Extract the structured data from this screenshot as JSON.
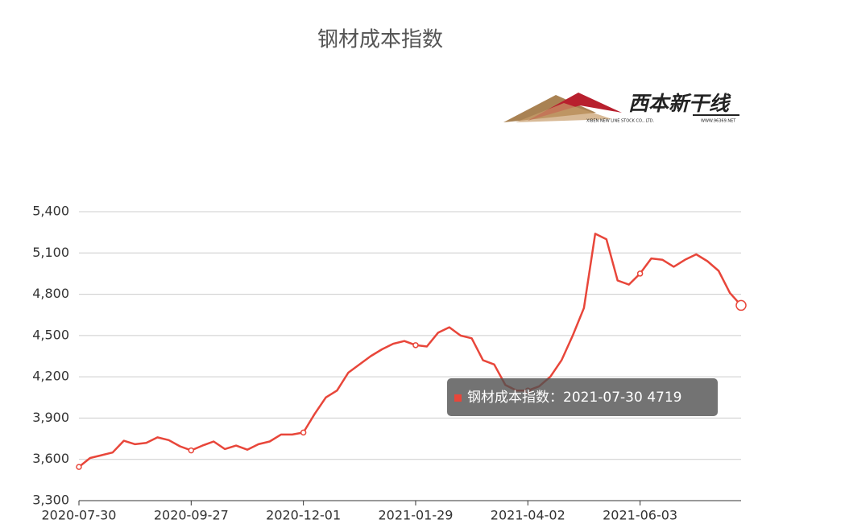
{
  "chart_data": {
    "type": "line",
    "title": "钢材成本指数",
    "categories": [
      "2020-07-30",
      null,
      null,
      null,
      null,
      null,
      null,
      null,
      null,
      null,
      "2020-09-27",
      null,
      null,
      null,
      null,
      null,
      null,
      null,
      null,
      null,
      "2020-12-01",
      null,
      null,
      null,
      null,
      null,
      null,
      null,
      null,
      null,
      "2021-01-29",
      null,
      null,
      null,
      null,
      null,
      null,
      null,
      null,
      null,
      "2021-04-02",
      null,
      null,
      null,
      null,
      null,
      null,
      null,
      null,
      null,
      "2021-06-03",
      null,
      null,
      null,
      null,
      null,
      null,
      null,
      null,
      null
    ],
    "series": [
      {
        "name": "钢材成本指数",
        "color": "#e8463a",
        "values": [
          3545,
          3610,
          3630,
          3650,
          3735,
          3710,
          3720,
          3760,
          3740,
          3695,
          3665,
          3700,
          3730,
          3675,
          3700,
          3670,
          3710,
          3730,
          3780,
          3780,
          3795,
          3930,
          4050,
          4100,
          4230,
          4290,
          4350,
          4400,
          4440,
          4460,
          4430,
          4420,
          4520,
          4560,
          4500,
          4480,
          4320,
          4290,
          4140,
          4100,
          4100,
          4130,
          4200,
          4320,
          4500,
          4700,
          5240,
          5200,
          4900,
          4870,
          4950,
          5060,
          5050,
          5000,
          5050,
          5090,
          5040,
          4970,
          4810,
          4719
        ]
      }
    ],
    "ylim": [
      3300,
      5400
    ],
    "yticks": [
      {
        "value": 3300,
        "label": "3,300"
      },
      {
        "value": 3600,
        "label": "3,600"
      },
      {
        "value": 3900,
        "label": "3,900"
      },
      {
        "value": 4200,
        "label": "4,200"
      },
      {
        "value": 4500,
        "label": "4,500"
      },
      {
        "value": 4800,
        "label": "4,800"
      },
      {
        "value": 5100,
        "label": "5,100"
      },
      {
        "value": 5400,
        "label": "5,400"
      }
    ],
    "grid": true,
    "tooltip": {
      "prefix": "钢材成本指数：2021-07-30"
    }
  },
  "logo": {
    "name": "西本新干线",
    "company": "XIBEN NEW LINE STOCK CO., LTD.",
    "site": "WWW.96369.NET"
  }
}
